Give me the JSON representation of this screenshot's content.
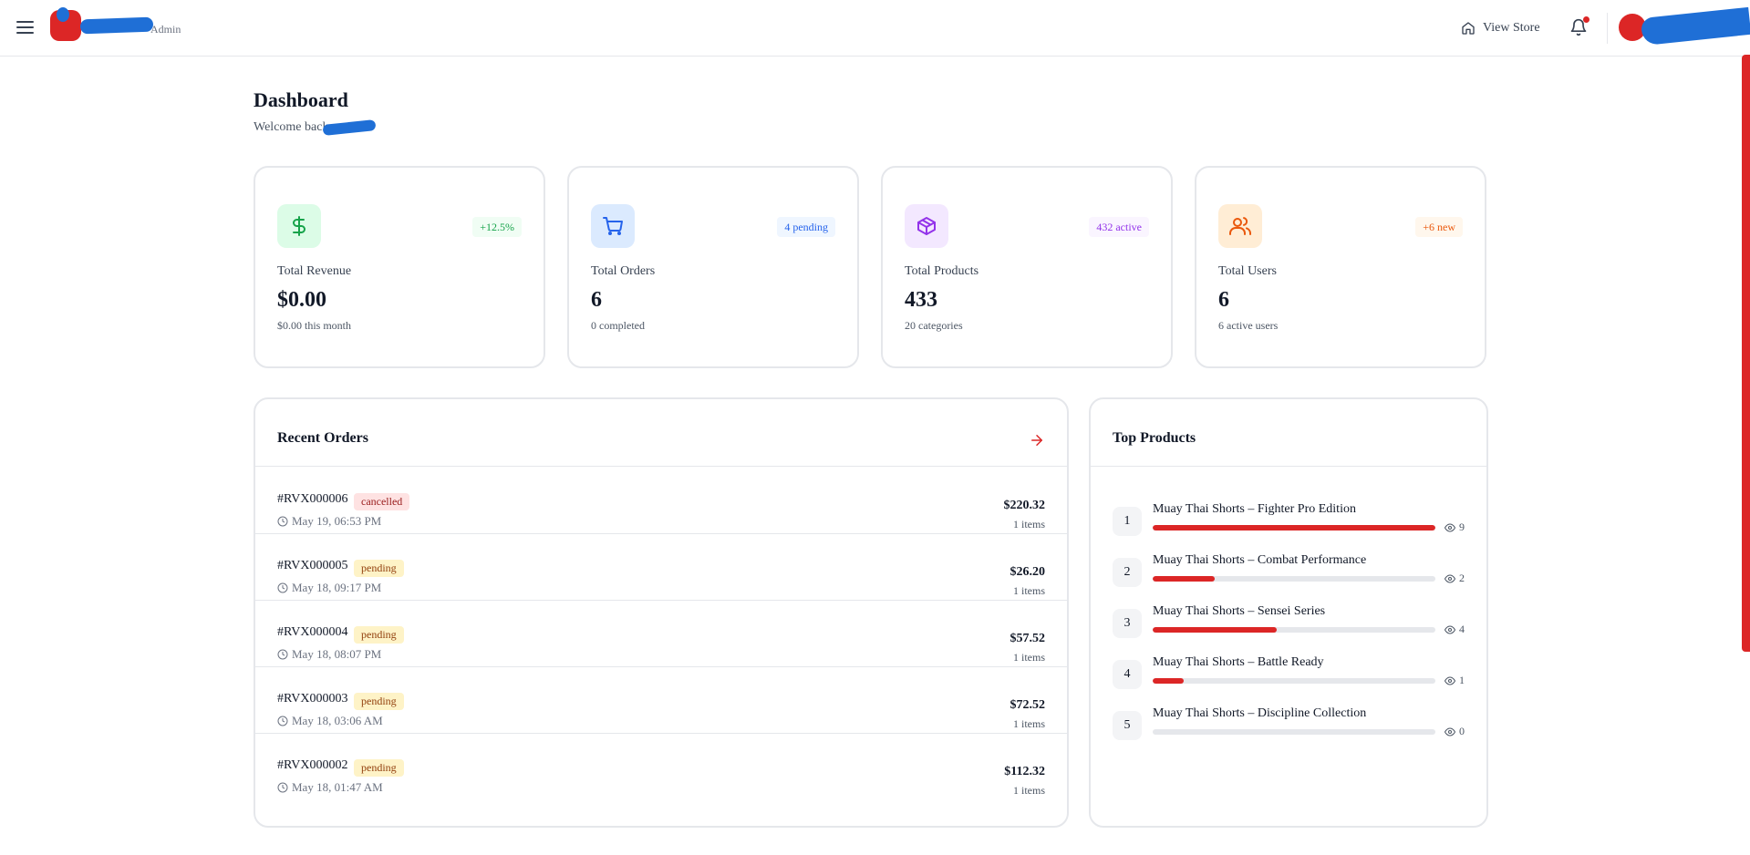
{
  "header": {
    "brand_sub": "Admin",
    "view_store_label": "View Store"
  },
  "page": {
    "title": "Dashboard",
    "welcome": "Welcome back,"
  },
  "stats": [
    {
      "label": "Total Revenue",
      "value": "$0.00",
      "sub": "$0.00 this month",
      "badge": "+12.5%",
      "icon": "dollar-icon",
      "color": "#16a34a",
      "bg": "#dcfce7",
      "badge_bg": "#f0fdf4"
    },
    {
      "label": "Total Orders",
      "value": "6",
      "sub": "0 completed",
      "badge": "4 pending",
      "icon": "cart-icon",
      "color": "#2563eb",
      "bg": "#dbeafe",
      "badge_bg": "#eff6ff"
    },
    {
      "label": "Total Products",
      "value": "433",
      "sub": "20 categories",
      "badge": "432 active",
      "icon": "box-icon",
      "color": "#9333ea",
      "bg": "#f3e8ff",
      "badge_bg": "#faf5ff"
    },
    {
      "label": "Total Users",
      "value": "6",
      "sub": "6 active users",
      "badge": "+6 new",
      "icon": "users-icon",
      "color": "#ea580c",
      "bg": "#ffedd5",
      "badge_bg": "#fff7ed"
    }
  ],
  "recent_orders": {
    "title": "Recent Orders",
    "orders": [
      {
        "id": "#RVX000006",
        "status": "cancelled",
        "date": "May 19, 06:53 PM",
        "amount": "$220.32",
        "items": "1 items"
      },
      {
        "id": "#RVX000005",
        "status": "pending",
        "date": "May 18, 09:17 PM",
        "amount": "$26.20",
        "items": "1 items"
      },
      {
        "id": "#RVX000004",
        "status": "pending",
        "date": "May 18, 08:07 PM",
        "amount": "$57.52",
        "items": "1 items"
      },
      {
        "id": "#RVX000003",
        "status": "pending",
        "date": "May 18, 03:06 AM",
        "amount": "$72.52",
        "items": "1 items"
      },
      {
        "id": "#RVX000002",
        "status": "pending",
        "date": "May 18, 01:47 AM",
        "amount": "$112.32",
        "items": "1 items"
      }
    ]
  },
  "top_products": {
    "title": "Top Products",
    "products": [
      {
        "rank": "1",
        "name": "Muay Thai Shorts – Fighter Pro Edition",
        "views": "9",
        "fill": 1.0
      },
      {
        "rank": "2",
        "name": "Muay Thai Shorts – Combat Performance",
        "views": "2",
        "fill": 0.22
      },
      {
        "rank": "3",
        "name": "Muay Thai Shorts – Sensei Series",
        "views": "4",
        "fill": 0.44
      },
      {
        "rank": "4",
        "name": "Muay Thai Shorts – Battle Ready",
        "views": "1",
        "fill": 0.11
      },
      {
        "rank": "5",
        "name": "Muay Thai Shorts – Discipline Collection",
        "views": "0",
        "fill": 0.0
      }
    ]
  },
  "colors": {
    "accent": "#dc2626",
    "cancelled": "#fee2e2",
    "pending": "#fef3c7"
  }
}
